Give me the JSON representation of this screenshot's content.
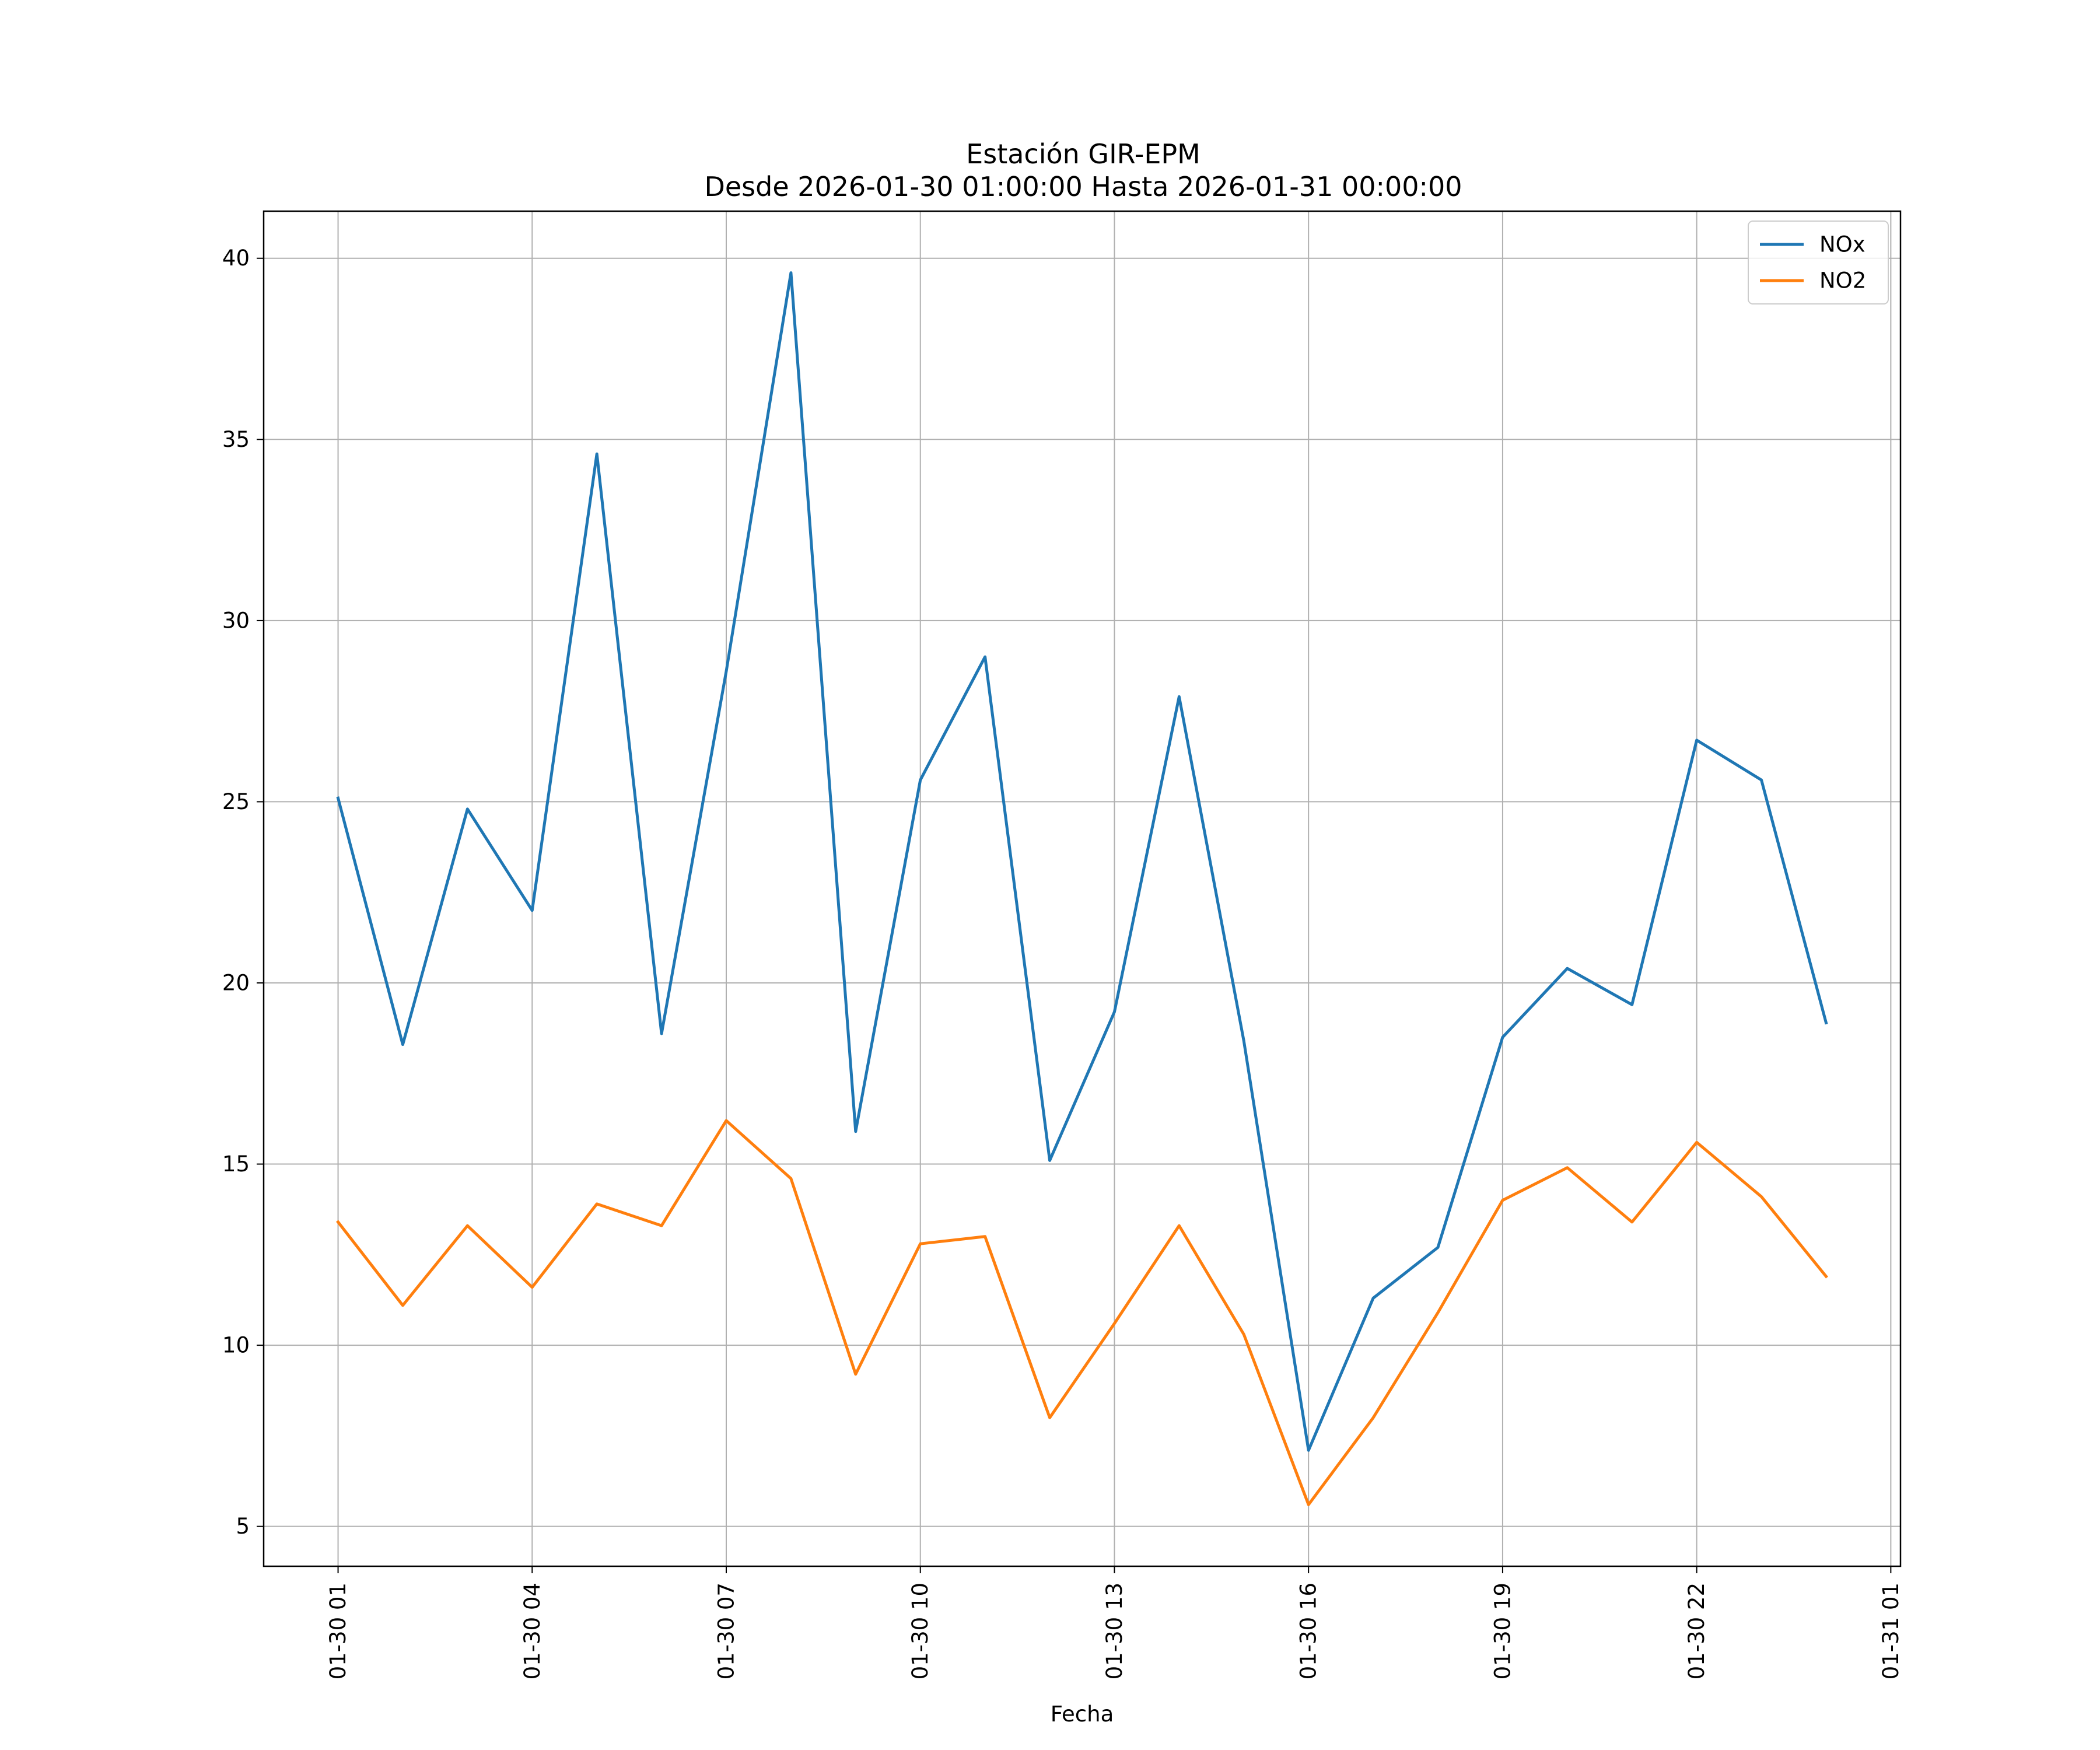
{
  "chart_data": {
    "type": "line",
    "title_line1": "Estación GIR-EPM",
    "title_line2": "Desde 2026-01-30 01:00:00 Hasta 2026-01-31 00:00:00",
    "xlabel": "Fecha",
    "ylabel": "",
    "x_hours": [
      1,
      2,
      3,
      4,
      5,
      6,
      7,
      8,
      9,
      10,
      11,
      12,
      13,
      14,
      15,
      16,
      17,
      18,
      19,
      20,
      21,
      22,
      23,
      24
    ],
    "xlim_hours": [
      -0.15,
      25.15
    ],
    "ylim": [
      3.9,
      41.3
    ],
    "grid": true,
    "legend_position": "top-right",
    "x_ticks": [
      {
        "hour": 1,
        "label": "01-30 01"
      },
      {
        "hour": 4,
        "label": "01-30 04"
      },
      {
        "hour": 7,
        "label": "01-30 07"
      },
      {
        "hour": 10,
        "label": "01-30 10"
      },
      {
        "hour": 13,
        "label": "01-30 13"
      },
      {
        "hour": 16,
        "label": "01-30 16"
      },
      {
        "hour": 19,
        "label": "01-30 19"
      },
      {
        "hour": 22,
        "label": "01-30 22"
      },
      {
        "hour": 25,
        "label": "01-31 01"
      }
    ],
    "y_ticks": [
      {
        "value": 5,
        "label": "5"
      },
      {
        "value": 10,
        "label": "10"
      },
      {
        "value": 15,
        "label": "15"
      },
      {
        "value": 20,
        "label": "20"
      },
      {
        "value": 25,
        "label": "25"
      },
      {
        "value": 30,
        "label": "30"
      },
      {
        "value": 35,
        "label": "35"
      },
      {
        "value": 40,
        "label": "40"
      }
    ],
    "series": [
      {
        "name": "NOx",
        "color": "#1f77b4",
        "values": [
          25.1,
          18.3,
          24.8,
          22.0,
          34.6,
          18.6,
          28.6,
          39.6,
          15.9,
          25.6,
          29.0,
          15.1,
          19.2,
          27.9,
          18.4,
          7.1,
          11.3,
          12.7,
          18.5,
          20.4,
          19.4,
          26.7,
          25.6,
          18.9
        ]
      },
      {
        "name": "NO2",
        "color": "#ff7f0e",
        "values": [
          13.4,
          11.1,
          13.3,
          11.6,
          13.9,
          13.3,
          16.2,
          14.6,
          9.2,
          12.8,
          13.0,
          8.0,
          10.6,
          13.3,
          10.3,
          5.6,
          8.0,
          10.9,
          14.0,
          14.9,
          13.4,
          15.6,
          14.1,
          11.9
        ]
      }
    ]
  }
}
